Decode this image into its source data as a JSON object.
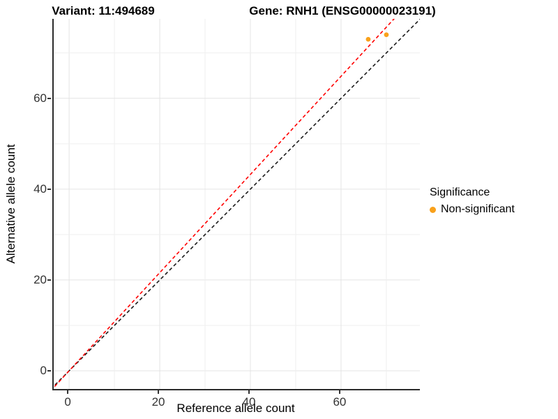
{
  "titles": {
    "variant": "Variant: 11:494689",
    "gene": "Gene: RNH1 (ENSG00000023191)"
  },
  "axes": {
    "x_label": "Reference allele count",
    "y_label": "Alternative allele count"
  },
  "legend": {
    "title": "Significance",
    "items": [
      {
        "label": "Non-significant",
        "color": "#F9A11B"
      }
    ]
  },
  "colors": {
    "point_orange": "#F9A11B",
    "identity_line": "#1A1A1A",
    "ratio_line": "#FF0000",
    "grid_major": "#E4E4E4",
    "grid_minor": "#EFEFEF",
    "axis_line": "#2B2B2B",
    "tick_text": "#333333"
  },
  "chart_data": {
    "type": "scatter",
    "title_left": "Variant: 11:494689",
    "title_right": "Gene: RNH1 (ENSG00000023191)",
    "xlabel": "Reference allele count",
    "ylabel": "Alternative allele count",
    "xlim": [
      -3.4,
      77.4
    ],
    "ylim": [
      -4.0,
      77.5
    ],
    "x_ticks": [
      0,
      20,
      40,
      60
    ],
    "y_ticks": [
      0,
      20,
      40,
      60
    ],
    "grid_ticks": [
      0,
      10,
      20,
      30,
      40,
      50,
      60,
      70
    ],
    "grid": true,
    "legend_position": "right",
    "series": [
      {
        "name": "Non-significant",
        "color": "#F9A11B",
        "points": [
          {
            "x": 66,
            "y": 73
          },
          {
            "x": 70,
            "y": 74
          }
        ]
      }
    ],
    "lines": [
      {
        "name": "identity",
        "slope": 1.0,
        "intercept": 0,
        "color": "#1A1A1A",
        "style": "dashed"
      },
      {
        "name": "allelic-ratio",
        "slope": 1.081,
        "intercept": 0,
        "color": "#FF0000",
        "style": "dashed"
      }
    ]
  }
}
